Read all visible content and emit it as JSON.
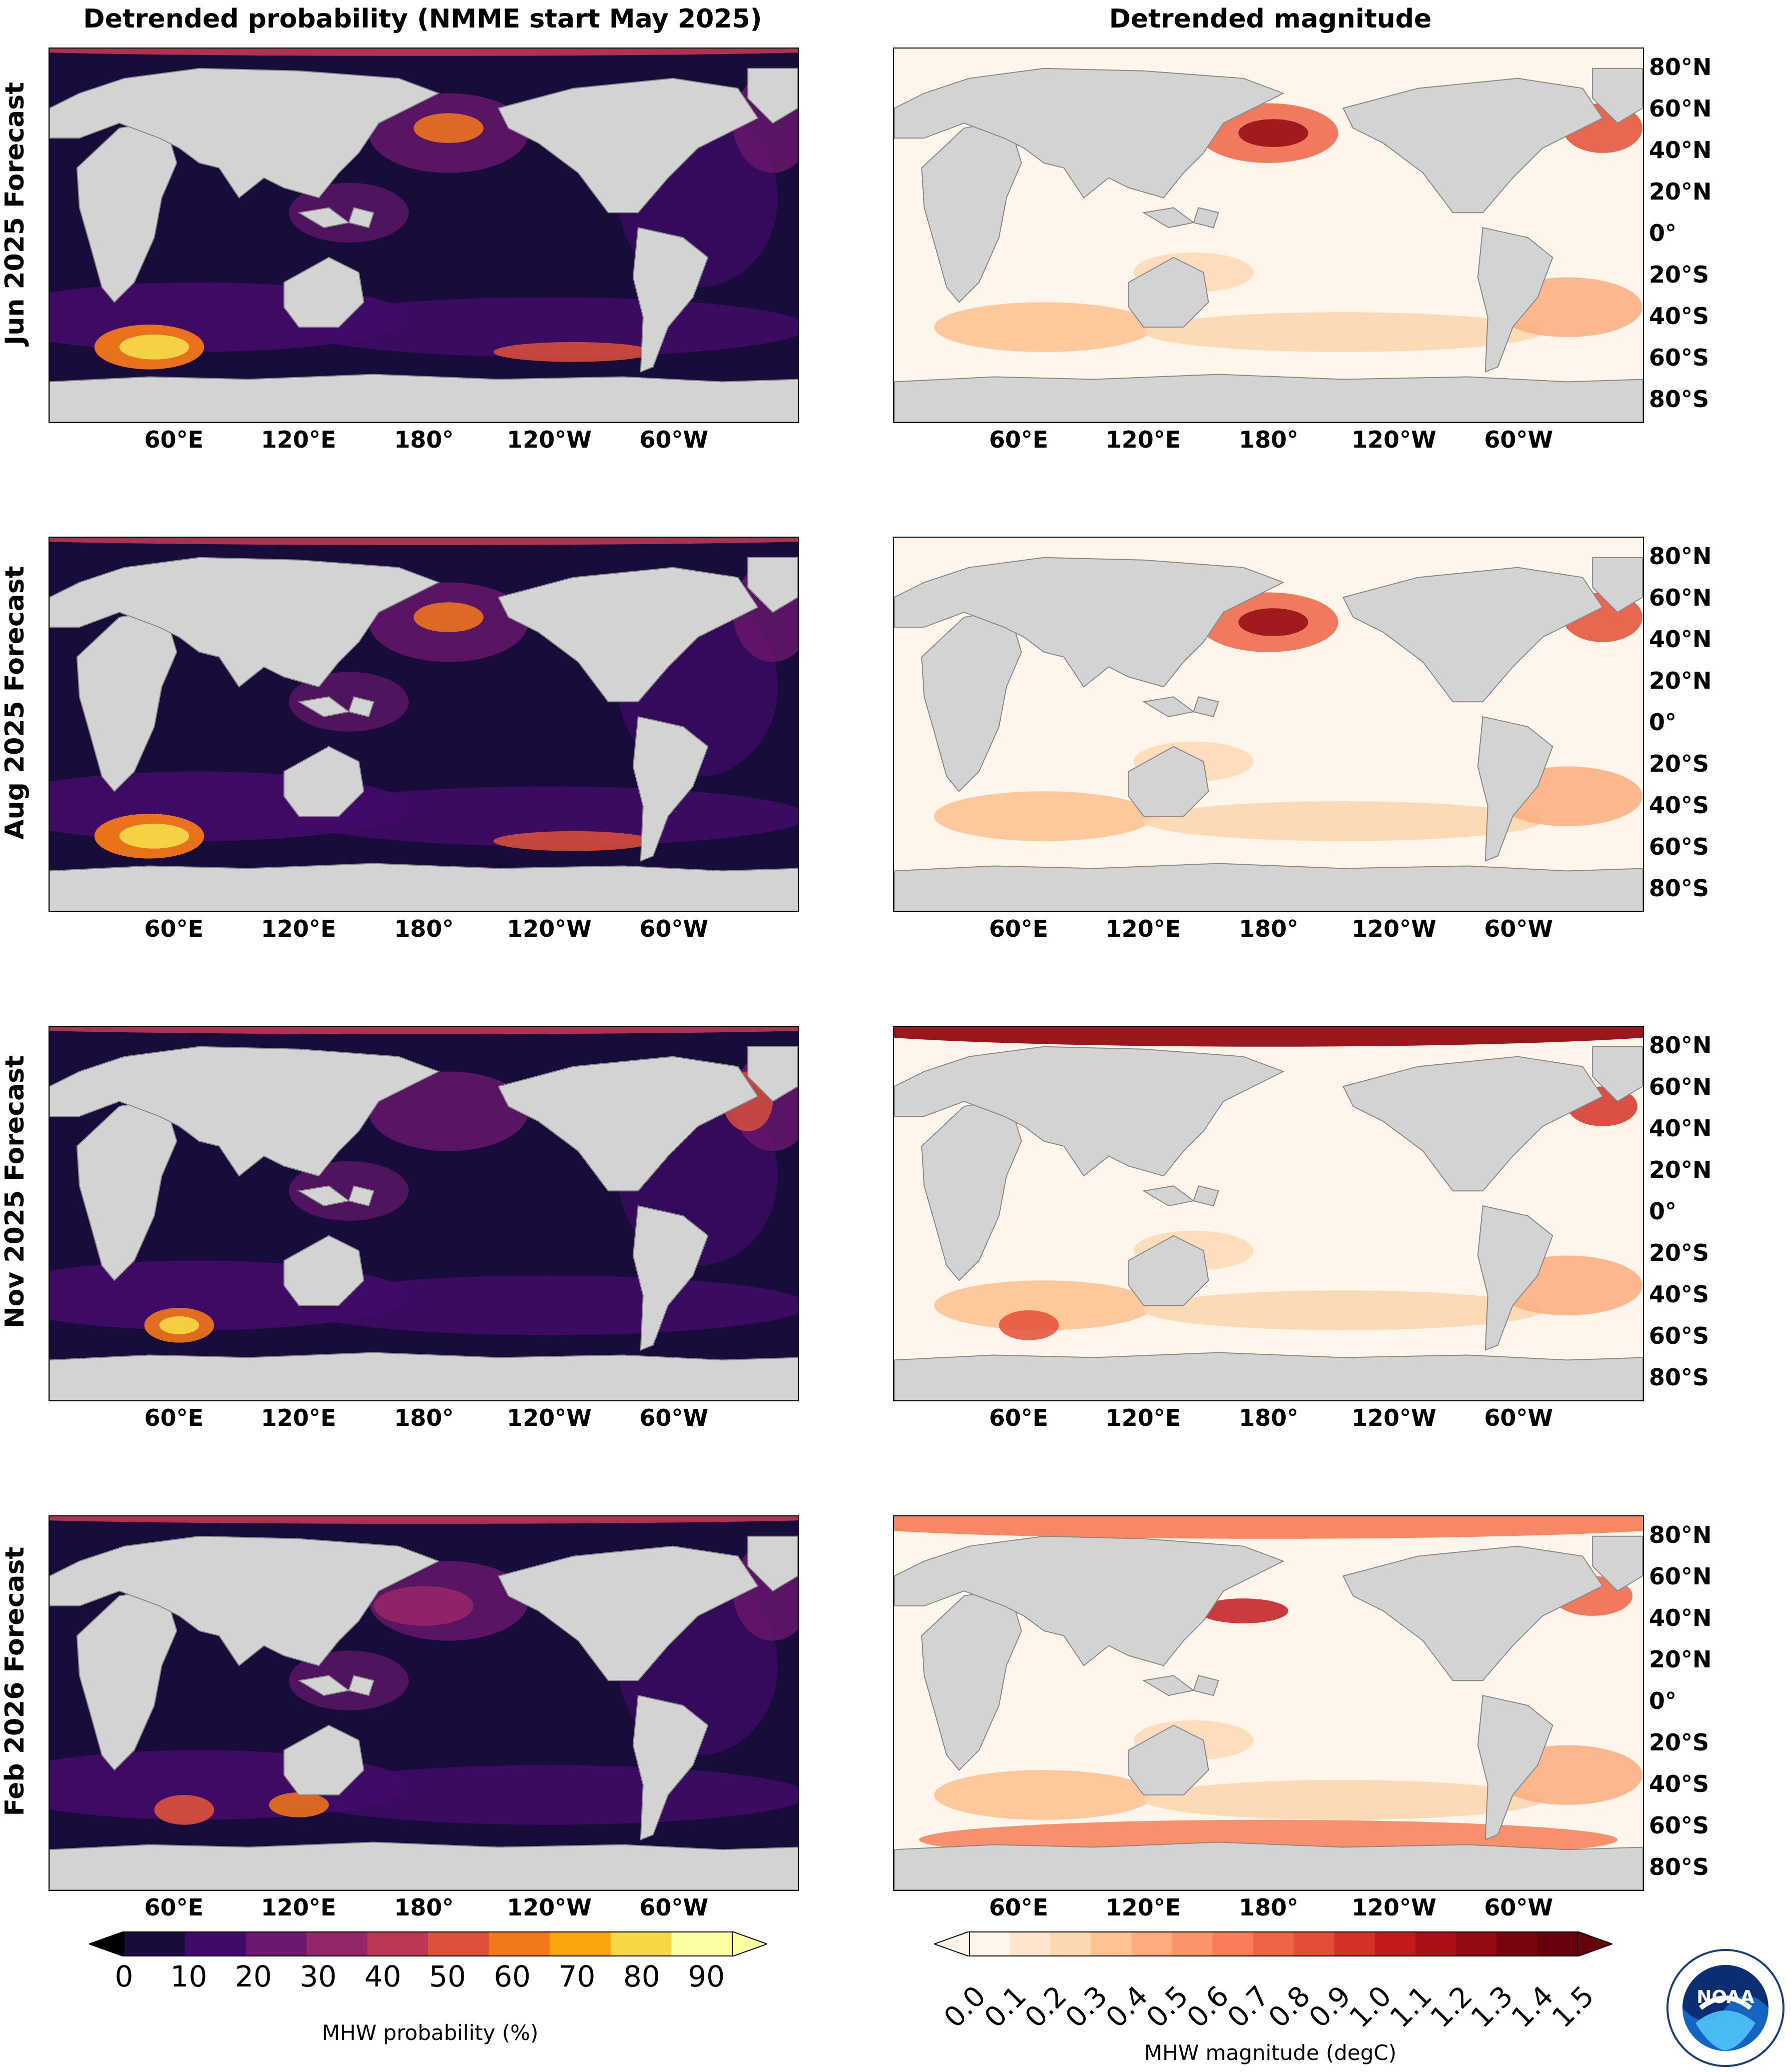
{
  "titles": {
    "left": "Detrended probability (NMME start May 2025)",
    "right": "Detrended magnitude"
  },
  "rows": [
    {
      "label": "Jun 2025 Forecast"
    },
    {
      "label": "Aug 2025 Forecast"
    },
    {
      "label": "Nov 2025 Forecast"
    },
    {
      "label": "Feb 2026 Forecast"
    }
  ],
  "lon_ticks": [
    "60°E",
    "120°E",
    "180°",
    "120°W",
    "60°W"
  ],
  "lat_ticks": [
    "80°N",
    "60°N",
    "40°N",
    "20°N",
    "0°",
    "20°S",
    "40°S",
    "60°S",
    "80°S"
  ],
  "prob_colorbar": {
    "label": "MHW probability (%)",
    "ticks": [
      "0",
      "10",
      "20",
      "30",
      "40",
      "50",
      "60",
      "70",
      "80",
      "90"
    ],
    "colors": [
      "#000004",
      "#170c3a",
      "#420a68",
      "#6a176e",
      "#932667",
      "#bc3754",
      "#dd513a",
      "#f37819",
      "#fca50a",
      "#f6d746",
      "#fcffa4"
    ]
  },
  "mag_colorbar": {
    "label": "MHW magnitude (degC)",
    "ticks": [
      "0.0",
      "0.1",
      "0.2",
      "0.3",
      "0.4",
      "0.5",
      "0.6",
      "0.7",
      "0.8",
      "0.9",
      "1.0",
      "1.1",
      "1.2",
      "1.3",
      "1.4",
      "1.5"
    ],
    "colors": [
      "#fff5eb",
      "#fee6ce",
      "#fdd7b0",
      "#fdc392",
      "#fcac7e",
      "#fc9469",
      "#f77c57",
      "#ef6445",
      "#e44d36",
      "#d63128",
      "#c21a1d",
      "#ab1016",
      "#930b12",
      "#7a040e",
      "#67000d"
    ]
  },
  "colors": {
    "land": "#d3d3d3",
    "prob_ocean": "#170c3a",
    "mag_ocean": "#fff5eb"
  },
  "logo": {
    "icon": "noaa-logo-icon",
    "text": "NOAA"
  }
}
